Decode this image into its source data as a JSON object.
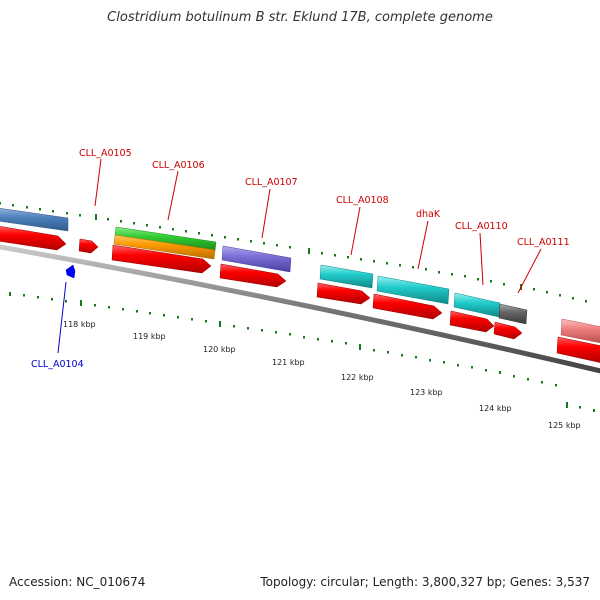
{
  "header": {
    "title": "Clostridium botulinum B str. Eklund 17B, complete genome"
  },
  "footer": {
    "accession": "Accession: NC_010674",
    "summary": "Topology: circular; Length: 3,800,327 bp; Genes: 3,537"
  },
  "genes": [
    {
      "label": "CLL_A0104",
      "color": "#0000cc"
    },
    {
      "label": "CLL_A0105",
      "color": "#cc0000"
    },
    {
      "label": "CLL_A0106",
      "color": "#cc0000"
    },
    {
      "label": "CLL_A0107",
      "color": "#cc0000"
    },
    {
      "label": "CLL_A0108",
      "color": "#cc0000"
    },
    {
      "label": "dhaK",
      "color": "#cc0000"
    },
    {
      "label": "CLL_A0110",
      "color": "#cc0000"
    },
    {
      "label": "CLL_A0111",
      "color": "#cc0000"
    }
  ],
  "ticks": [
    {
      "label": "118 kbp"
    },
    {
      "label": "119 kbp"
    },
    {
      "label": "120 kbp"
    },
    {
      "label": "121 kbp"
    },
    {
      "label": "122 kbp"
    },
    {
      "label": "123 kbp"
    },
    {
      "label": "124 kbp"
    },
    {
      "label": "125 kbp"
    }
  ],
  "colors": {
    "cds": "#ff0000",
    "steel_blue": "#4f81bd",
    "green": "#33cc33",
    "orange": "#ff9900",
    "purple": "#7a6fd6",
    "cyan": "#22cccc",
    "gray": "#666666",
    "pink": "#f08080",
    "tick_green": "#1a7a1a"
  }
}
